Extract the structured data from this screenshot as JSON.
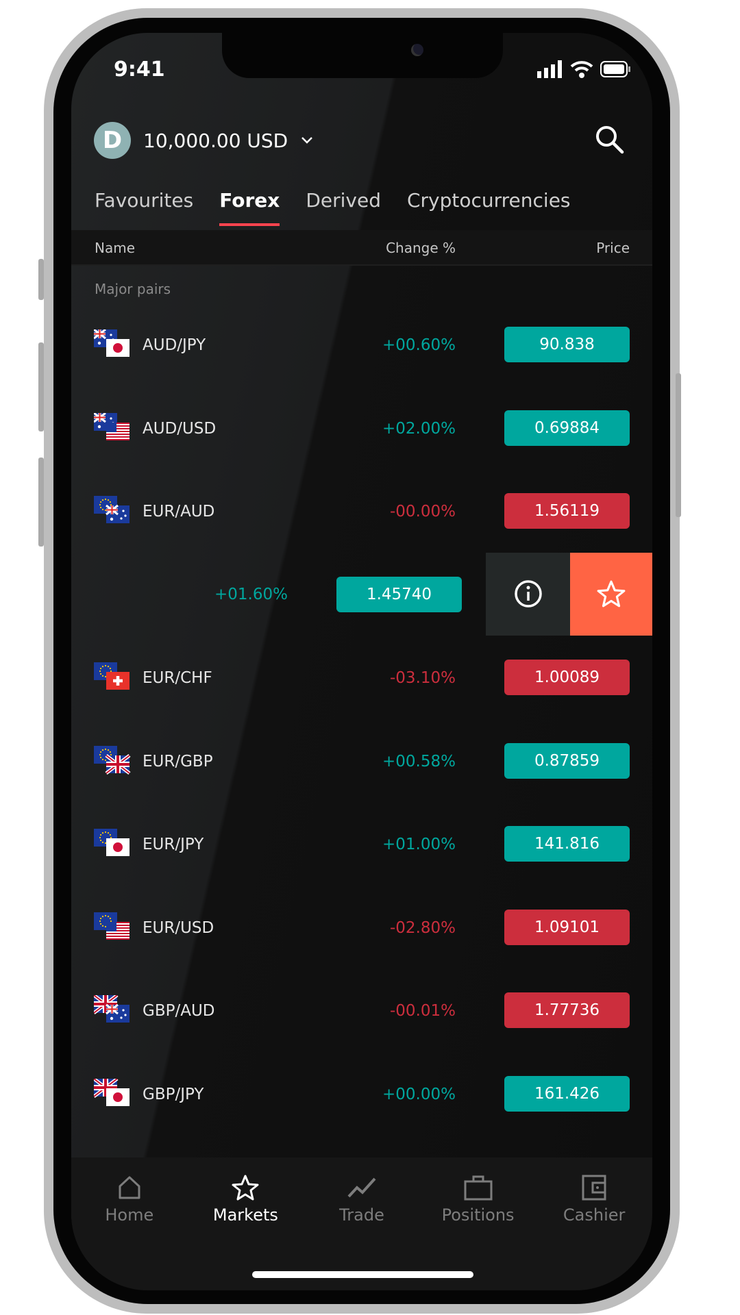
{
  "status_bar": {
    "time": "9:41"
  },
  "header": {
    "balance": "10,000.00 USD",
    "logo_letter": "D",
    "icons": [
      "chevron-down-icon",
      "search-icon"
    ]
  },
  "tabs": [
    {
      "label": "Favourites"
    },
    {
      "label": "Forex",
      "active": true
    },
    {
      "label": "Derived"
    },
    {
      "label": "Cryptocurrencies"
    }
  ],
  "table_header": {
    "name": "Name",
    "change": "Change %",
    "price": "Price"
  },
  "section_title": "Major pairs",
  "rows": [
    {
      "name": "AUD/JPY",
      "change": "+00.60%",
      "price": "90.838",
      "dir": "up",
      "flags": [
        "au",
        "jp"
      ]
    },
    {
      "name": "AUD/USD",
      "change": "+02.00%",
      "price": "0.69884",
      "dir": "up",
      "flags": [
        "au",
        "us"
      ]
    },
    {
      "name": "EUR/AUD",
      "change": "-00.00%",
      "price": "1.56119",
      "dir": "down",
      "flags": [
        "eu",
        "au"
      ]
    },
    {
      "name": "",
      "change": "+01.60%",
      "price": "1.45740",
      "dir": "up",
      "swiped": true,
      "flags": []
    },
    {
      "name": "EUR/CHF",
      "change": "-03.10%",
      "price": "1.00089",
      "dir": "down",
      "flags": [
        "eu",
        "ch"
      ]
    },
    {
      "name": "EUR/GBP",
      "change": "+00.58%",
      "price": "0.87859",
      "dir": "up",
      "flags": [
        "eu",
        "gb"
      ]
    },
    {
      "name": "EUR/JPY",
      "change": "+01.00%",
      "price": "141.816",
      "dir": "up",
      "flags": [
        "eu",
        "jp"
      ]
    },
    {
      "name": "EUR/USD",
      "change": "-02.80%",
      "price": "1.09101",
      "dir": "down",
      "flags": [
        "eu",
        "us"
      ]
    },
    {
      "name": "GBP/AUD",
      "change": "-00.01%",
      "price": "1.77736",
      "dir": "down",
      "flags": [
        "gb",
        "au"
      ]
    },
    {
      "name": "GBP/JPY",
      "change": "+00.00%",
      "price": "161.426",
      "dir": "up",
      "flags": [
        "gb",
        "jp"
      ]
    }
  ],
  "swipe_actions": [
    "info-icon",
    "star-icon"
  ],
  "bottom_nav": [
    {
      "label": "Home",
      "icon": "home-icon"
    },
    {
      "label": "Markets",
      "icon": "star-icon",
      "active": true
    },
    {
      "label": "Trade",
      "icon": "chart-line-icon"
    },
    {
      "label": "Positions",
      "icon": "briefcase-icon"
    },
    {
      "label": "Cashier",
      "icon": "wallet-icon"
    }
  ],
  "colors": {
    "up": "#00a79e",
    "down": "#cc2e3d",
    "accent": "#ff444f",
    "favourite": "#ff6444"
  }
}
